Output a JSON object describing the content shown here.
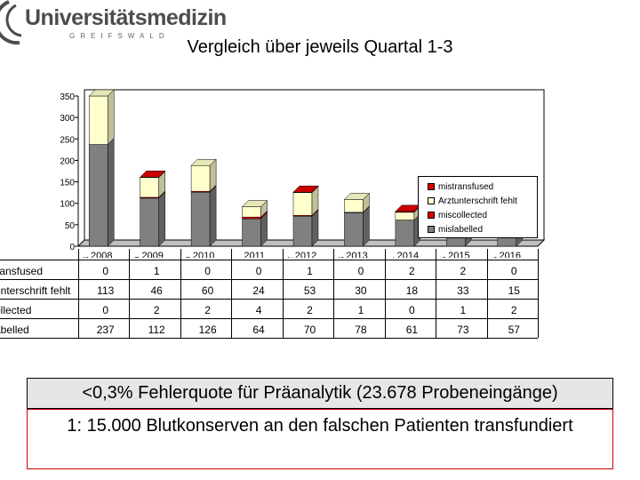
{
  "logo": {
    "text": "Universitätsmedizin",
    "sub": "GREIFSWALD"
  },
  "chart_data": {
    "type": "bar",
    "stacked": true,
    "title": "Vergleich über jeweils Quartal 1-3",
    "categories": [
      "2008",
      "2009",
      "2010",
      "2011",
      "2012",
      "2013",
      "2014",
      "2015",
      "2016"
    ],
    "ylim": [
      0,
      350
    ],
    "yticks": [
      0,
      50,
      100,
      150,
      200,
      250,
      300,
      350
    ],
    "series": [
      {
        "name": "mislabelled",
        "values": [
          237,
          112,
          126,
          64,
          70,
          78,
          61,
          73,
          57
        ],
        "color": "#808080"
      },
      {
        "name": "miscollected",
        "values": [
          0,
          2,
          2,
          4,
          2,
          1,
          0,
          1,
          2
        ],
        "color": "#e00000"
      },
      {
        "name": "Arztunterschrift fehlt",
        "values": [
          113,
          46,
          60,
          24,
          53,
          30,
          18,
          33,
          15
        ],
        "color": "#ffffcc"
      },
      {
        "name": "mistransfused",
        "values": [
          0,
          1,
          0,
          0,
          1,
          0,
          2,
          2,
          0
        ],
        "color": "#e00000"
      }
    ],
    "legend_position": "right",
    "grid": false
  },
  "table": {
    "rows": [
      {
        "label": "transfused",
        "values": [
          "0",
          "1",
          "0",
          "0",
          "1",
          "0",
          "2",
          "2",
          "0"
        ]
      },
      {
        "label": "unterschrift fehlt",
        "values": [
          "113",
          "46",
          "60",
          "24",
          "53",
          "30",
          "18",
          "33",
          "15"
        ]
      },
      {
        "label": "ollected",
        "values": [
          "0",
          "2",
          "2",
          "4",
          "2",
          "1",
          "0",
          "1",
          "2"
        ]
      },
      {
        "label": "abelled",
        "values": [
          "237",
          "112",
          "126",
          "64",
          "70",
          "78",
          "61",
          "73",
          "57"
        ]
      }
    ]
  },
  "notes": {
    "line1": "<0,3% Fehlerquote für Präanalytik (23.678 Probeneingänge)",
    "line2": "1: 15.000 Blutkonserven an den falschen Patienten transfundiert"
  }
}
